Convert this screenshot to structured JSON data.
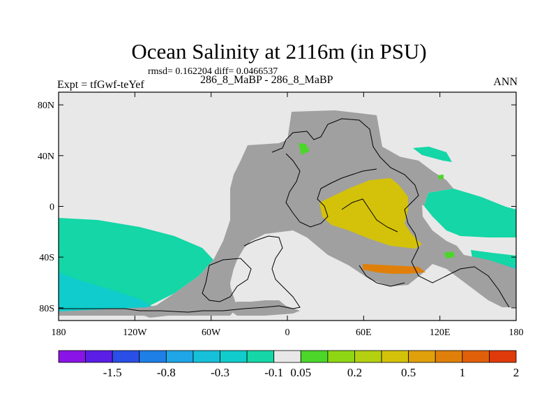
{
  "chart_data": {
    "type": "heatmap",
    "title": "Ocean Salinity at 2116m (in PSU)",
    "stats": "rmsd= 0.162204 diff= 0.0466537",
    "subtitle": "286_8_MaBP - 286_8_MaBP",
    "left_label": "Expt = tfGwf-teYef",
    "right_label": "ANN",
    "x_axis": {
      "range": [
        -180,
        180
      ],
      "ticks": [
        {
          "value": -180,
          "label": "180"
        },
        {
          "value": -120,
          "label": "120W"
        },
        {
          "value": -60,
          "label": "60W"
        },
        {
          "value": 0,
          "label": "0"
        },
        {
          "value": 60,
          "label": "60E"
        },
        {
          "value": 120,
          "label": "120E"
        },
        {
          "value": 180,
          "label": "180"
        }
      ]
    },
    "y_axis": {
      "range": [
        -90,
        90
      ],
      "ticks": [
        {
          "value": 80,
          "label": "80N"
        },
        {
          "value": 40,
          "label": "40N"
        },
        {
          "value": 0,
          "label": "0"
        },
        {
          "value": -40,
          "label": "40S"
        },
        {
          "value": -80,
          "label": "80S"
        }
      ]
    },
    "colorbar": {
      "colors": [
        "#8a14e6",
        "#5a1ee6",
        "#2a4fe6",
        "#1e7fe6",
        "#1ea6e6",
        "#16c0d8",
        "#10cccc",
        "#14d6a6",
        "#e8e8e8",
        "#4cd62a",
        "#8ed614",
        "#b4d010",
        "#d4c20a",
        "#e0a00a",
        "#e0800a",
        "#e0600a",
        "#e03a0a"
      ],
      "labels": [
        {
          "after_index": 1,
          "label": "-1.5"
        },
        {
          "after_index": 3,
          "label": "-0.8"
        },
        {
          "after_index": 5,
          "label": "-0.3"
        },
        {
          "after_index": 7,
          "label": "-0.1"
        },
        {
          "after_index": 8,
          "label": "0.05"
        },
        {
          "after_index": 10,
          "label": "0.2"
        },
        {
          "after_index": 12,
          "label": "0.5"
        },
        {
          "after_index": 14,
          "label": "1"
        },
        {
          "after_index": 16,
          "label": "2"
        }
      ]
    },
    "fill_colors": {
      "land": "#a0a0a0",
      "no_change": "#e8e8e8",
      "fresher": "#14d6a6",
      "fresher_strong": "#10cccc",
      "saltier": "#d4c20a",
      "saltier_strong": "#e0800a",
      "slight_salty": "#4cd62a",
      "coast": "#000000"
    }
  }
}
